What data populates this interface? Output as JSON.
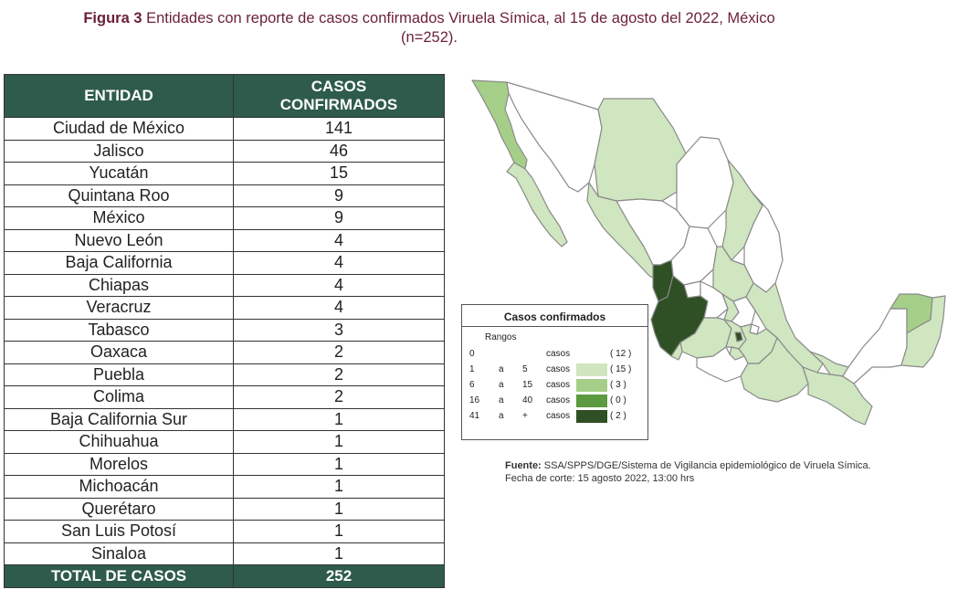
{
  "figure": {
    "label": "Figura 3",
    "title": "Entidades con reporte de casos confirmados Viruela Símica, al 15 de agosto del 2022, México",
    "n": "(n=252)."
  },
  "table": {
    "header_entity": "ENTIDAD",
    "header_cases_1": "CASOS",
    "header_cases_2": "CONFIRMADOS",
    "rows": [
      {
        "entidad": "Ciudad de México",
        "casos": "141"
      },
      {
        "entidad": "Jalisco",
        "casos": "46"
      },
      {
        "entidad": "Yucatán",
        "casos": "15"
      },
      {
        "entidad": "Quintana Roo",
        "casos": "9"
      },
      {
        "entidad": "México",
        "casos": "9"
      },
      {
        "entidad": "Nuevo León",
        "casos": "4"
      },
      {
        "entidad": "Baja California",
        "casos": "4"
      },
      {
        "entidad": "Chiapas",
        "casos": "4"
      },
      {
        "entidad": "Veracruz",
        "casos": "4"
      },
      {
        "entidad": "Tabasco",
        "casos": "3"
      },
      {
        "entidad": "Oaxaca",
        "casos": "2"
      },
      {
        "entidad": "Puebla",
        "casos": "2"
      },
      {
        "entidad": "Colima",
        "casos": "2"
      },
      {
        "entidad": "Baja California Sur",
        "casos": "1"
      },
      {
        "entidad": "Chihuahua",
        "casos": "1"
      },
      {
        "entidad": "Morelos",
        "casos": "1"
      },
      {
        "entidad": "Michoacán",
        "casos": "1"
      },
      {
        "entidad": "Querétaro",
        "casos": "1"
      },
      {
        "entidad": "San Luis Potosí",
        "casos": "1"
      },
      {
        "entidad": "Sinaloa",
        "casos": "1"
      }
    ],
    "total_label": "TOTAL DE CASOS",
    "total_value": "252"
  },
  "legend": {
    "title": "Casos confirmados",
    "subtitle": "Rangos",
    "ranges": [
      {
        "from": "0",
        "sep": "",
        "to": "",
        "unit": "casos",
        "count": "( 12 )",
        "color": "#ffffff"
      },
      {
        "from": "1",
        "sep": "a",
        "to": "5",
        "unit": "casos",
        "count": "( 15 )",
        "color": "#cfe6c0"
      },
      {
        "from": "6",
        "sep": "a",
        "to": "15",
        "unit": "casos",
        "count": "( 3 )",
        "color": "#a5cf89"
      },
      {
        "from": "16",
        "sep": "a",
        "to": "40",
        "unit": "casos",
        "count": "( 0 )",
        "color": "#5c9a3f"
      },
      {
        "from": "41",
        "sep": "a",
        "to": "+",
        "unit": "casos",
        "count": "( 2 )",
        "color": "#2f4f24"
      }
    ]
  },
  "source": {
    "label": "Fuente:",
    "text": "SSA/SPPS/DGE/Sistema de Vigilancia epidemiológico de Viruela Símica. Fecha de corte: 15 agosto 2022, 13:00 hrs"
  },
  "map_colors": {
    "none": "#ffffff",
    "low": "#cfe6c0",
    "mid": "#a5cf89",
    "high": "#2f4f24",
    "border": "#999999"
  }
}
